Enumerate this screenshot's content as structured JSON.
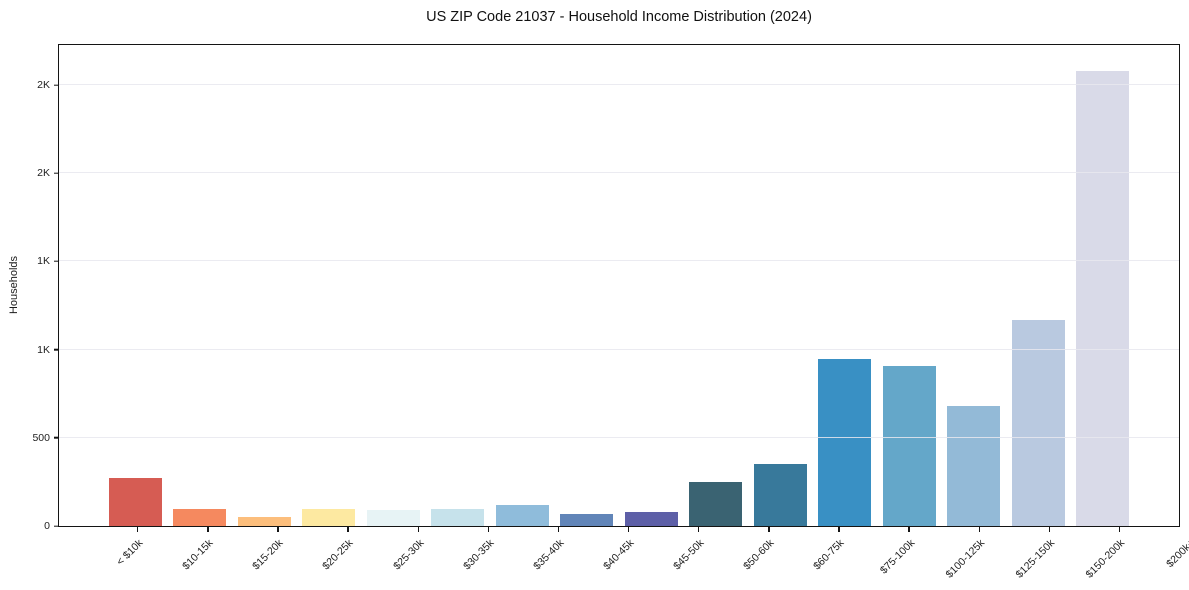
{
  "chart_data": {
    "type": "bar",
    "title": "US ZIP Code 21037 - Household Income Distribution (2024)",
    "xlabel": "",
    "ylabel": "Households",
    "categories": [
      "< $10k",
      "$10-15k",
      "$15-20k",
      "$20-25k",
      "$25-30k",
      "$30-35k",
      "$35-40k",
      "$40-45k",
      "$45-50k",
      "$50-60k",
      "$60-75k",
      "$75-100k",
      "$100-125k",
      "$125-150k",
      "$150-200k",
      "$200k+"
    ],
    "values": [
      272,
      95,
      50,
      95,
      90,
      95,
      118,
      67,
      78,
      252,
      352,
      948,
      905,
      680,
      1165,
      2580
    ],
    "bar_colors": [
      "#d65c53",
      "#f5895f",
      "#fcbe7c",
      "#fde9a1",
      "#e7f3f5",
      "#c6e2eb",
      "#8fbcdb",
      "#6185b8",
      "#5d5fa7",
      "#3a6372",
      "#38799b",
      "#3990c4",
      "#64a7c9",
      "#93bad7",
      "#b9c9e0",
      "#d9dae8"
    ],
    "ylim": [
      0,
      2726
    ],
    "yticks": [
      {
        "value": 0,
        "label": "0"
      },
      {
        "value": 500,
        "label": "500"
      },
      {
        "value": 1000,
        "label": "1K"
      },
      {
        "value": 1500,
        "label": "1K"
      },
      {
        "value": 2000,
        "label": "2K"
      },
      {
        "value": 2500,
        "label": "2K"
      }
    ],
    "grid": "horizontal",
    "legend": null
  },
  "style": {
    "grid_color": "rgba(231,232,238,0.85)",
    "frame_color": "#141414",
    "text_color": "#222222",
    "background": "#ffffff"
  }
}
